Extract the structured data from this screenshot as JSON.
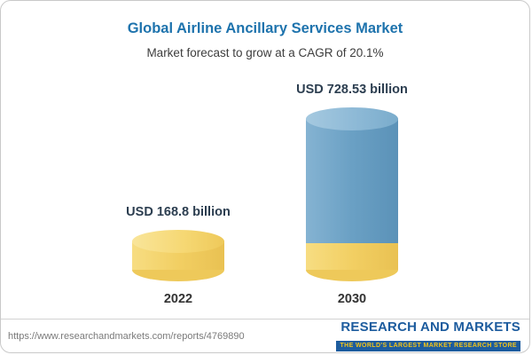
{
  "header": {
    "title": "Global Airline Ancillary Services Market",
    "subtitle": "Market forecast to grow at a CAGR of 20.1%"
  },
  "chart_data": {
    "type": "bar",
    "title": "Global Airline Ancillary Services Market",
    "subtitle": "Market forecast to grow at a CAGR of 20.1%",
    "categories": [
      "2022",
      "2030"
    ],
    "values": [
      168.8,
      728.53
    ],
    "value_labels": [
      "USD 168.8 billion",
      "USD 728.53 billion"
    ],
    "unit": "USD billion",
    "cagr": "20.1%",
    "ylim": [
      0,
      750
    ],
    "grid": false,
    "legend": false,
    "colors": {
      "bar_2022": "#f2cf63",
      "bar_2030": "#6aa0c4",
      "bar_2030_base": "#f2cf63",
      "title_accent": "#1e73ad"
    }
  },
  "footer": {
    "url": "https://www.researchandmarkets.com/reports/4769890",
    "logo_title": "RESEARCH AND MARKETS",
    "logo_tagline": "THE WORLD'S LARGEST MARKET RESEARCH STORE"
  }
}
